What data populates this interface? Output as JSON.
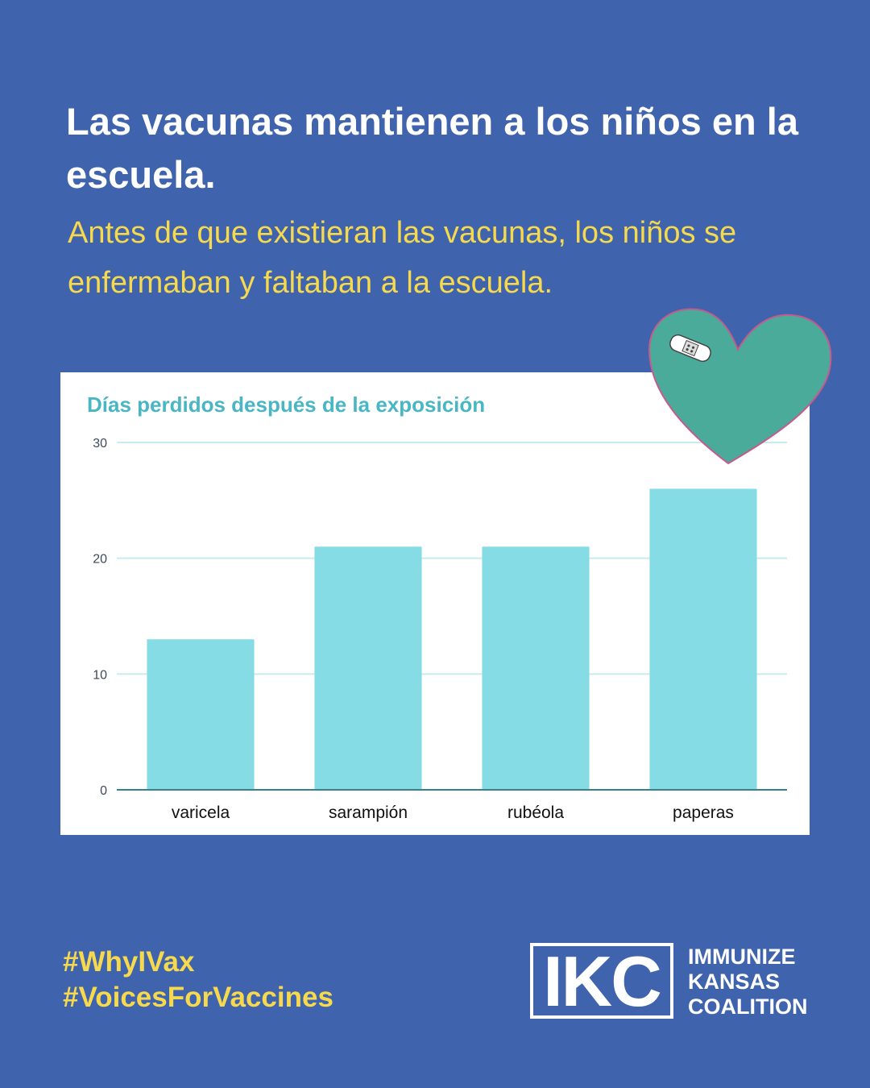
{
  "headline": "Las vacunas mantienen a los niños en la escuela.",
  "subtitle": "Antes de que existieran las vacunas, los niños se enfermaban y faltaban a la escuela.",
  "hashtags": [
    "#WhyIVax",
    "#VoicesForVaccines"
  ],
  "logo": {
    "mark": "IKC",
    "lines": [
      "IMMUNIZE",
      "KANSAS",
      "COALITION"
    ]
  },
  "colors": {
    "background": "#3f63ad",
    "title_white": "#ffffff",
    "accent_yellow": "#f6d94d",
    "bar": "#86dce5",
    "chart_title": "#49b6c4",
    "heart": "#4aab9a"
  },
  "chart_data": {
    "type": "bar",
    "title": "Días perdidos después de la exposición",
    "categories": [
      "varicela",
      "sarampión",
      "rubéola",
      "paperas"
    ],
    "values": [
      13,
      21,
      21,
      26
    ],
    "ylim": [
      0,
      30
    ],
    "yticks": [
      0,
      10,
      20,
      30
    ],
    "xlabel": "",
    "ylabel": "",
    "grid": true,
    "legend": "none"
  }
}
